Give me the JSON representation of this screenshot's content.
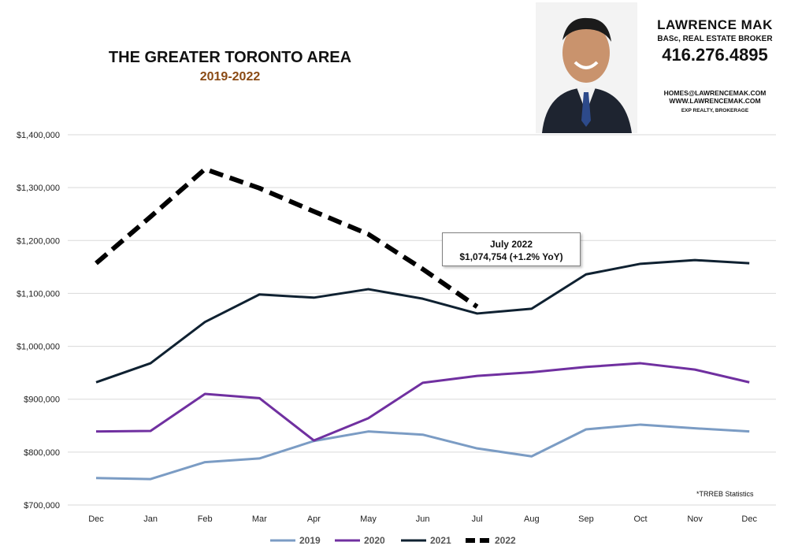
{
  "header": {
    "title": "THE GREATER TORONTO AREA",
    "subtitle": "2019-2022"
  },
  "agent_card": {
    "name": "LAWRENCE MAK",
    "role": "BASc, REAL ESTATE BROKER",
    "phone": "416.276.4895",
    "email": "HOMES@LAWRENCEMAK.COM",
    "website": "WWW.LAWRENCEMAK.COM",
    "brokerage": "EXP REALTY, BROKERAGE"
  },
  "callout": {
    "line1": "July 2022",
    "line2": "$1,074,754  (+1.2%  YoY)"
  },
  "source_note": "*TRREB Statistics",
  "chart_data": {
    "type": "line",
    "title": "THE GREATER TORONTO AREA",
    "subtitle": "2019-2022",
    "xlabel": "",
    "ylabel": "",
    "categories": [
      "Dec",
      "Jan",
      "Feb",
      "Mar",
      "Apr",
      "May",
      "Jun",
      "Jul",
      "Aug",
      "Sep",
      "Oct",
      "Nov",
      "Dec"
    ],
    "ylim": [
      700000,
      1400000
    ],
    "yticks": [
      700000,
      800000,
      900000,
      1000000,
      1100000,
      1200000,
      1300000,
      1400000
    ],
    "ytick_labels": [
      "$700,000",
      "$800,000",
      "$900,000",
      "$1,000,000",
      "$1,100,000",
      "$1,200,000",
      "$1,300,000",
      "$1,400,000"
    ],
    "grid": true,
    "legend_position": "bottom",
    "series": [
      {
        "name": "2019",
        "color": "#7b9cc4",
        "style": "solid",
        "values": [
          751000,
          749000,
          781000,
          788000,
          821000,
          839000,
          833000,
          807000,
          792000,
          843000,
          852000,
          845000,
          839000
        ]
      },
      {
        "name": "2020",
        "color": "#7030a0",
        "style": "solid",
        "values": [
          839000,
          840000,
          910000,
          902000,
          822000,
          864000,
          931000,
          944000,
          951000,
          961000,
          968000,
          956000,
          932000
        ]
      },
      {
        "name": "2021",
        "color": "#0f2131",
        "style": "solid",
        "values": [
          932000,
          968000,
          1046000,
          1098000,
          1092000,
          1108000,
          1090000,
          1062000,
          1071000,
          1136000,
          1156000,
          1163000,
          1157000
        ]
      },
      {
        "name": "2022",
        "color": "#000000",
        "style": "dashed",
        "values": [
          1157000,
          1245000,
          1335000,
          1299000,
          1255000,
          1212000,
          1146000,
          1074754,
          null,
          null,
          null,
          null,
          null
        ]
      }
    ]
  }
}
